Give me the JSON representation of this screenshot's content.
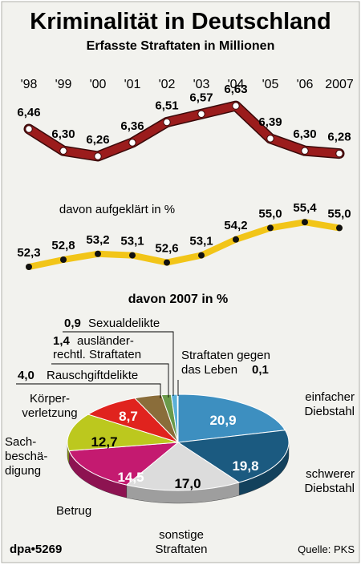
{
  "header": {
    "title": "Kriminalität in Deutschland",
    "subtitle": "Erfasste Straftaten in Millionen"
  },
  "footer": {
    "agency": "dpa•5269",
    "source": "Quelle: PKS"
  },
  "colors": {
    "background": "#f2f2ee",
    "offense_line": "#9b1c1c",
    "clearance_line": "#f2c518"
  },
  "chart_data": [
    {
      "type": "line",
      "title": "Kriminalität in Deutschland",
      "subtitle": "Erfasste Straftaten in Millionen",
      "categories": [
        "'98",
        "'99",
        "'00",
        "'01",
        "'02",
        "'03",
        "'04",
        "'05",
        "'06",
        "2007"
      ],
      "series": [
        {
          "values": [
            6.46,
            6.3,
            6.26,
            6.36,
            6.51,
            6.57,
            6.63,
            6.39,
            6.3,
            6.28
          ],
          "labels": [
            "6,46",
            "6,30",
            "6,26",
            "6,36",
            "6,51",
            "6,57",
            "6,63",
            "6,39",
            "6,30",
            "6,28"
          ],
          "color": "#9b1c1c"
        },
        {
          "name": "davon aufgeklärt in %",
          "values": [
            52.3,
            52.8,
            53.2,
            53.1,
            52.6,
            53.1,
            54.2,
            55.0,
            55.4,
            55.0
          ],
          "labels": [
            "52,3",
            "52,8",
            "53,2",
            "53,1",
            "52,6",
            "53,1",
            "54,2",
            "55,0",
            "55,4",
            "55,0"
          ],
          "color": "#f2c518"
        }
      ],
      "grid": false,
      "legend": "none"
    },
    {
      "type": "pie",
      "title": "davon 2007 in %",
      "slices": [
        {
          "name": "einfacher Diebstahl",
          "value": 20.9,
          "label": "20,9",
          "color": "#3d8fc0"
        },
        {
          "name": "schwerer Diebstahl",
          "value": 19.8,
          "label": "19,8",
          "color": "#1b5a80"
        },
        {
          "name": "sonstige Straftaten",
          "value": 17.0,
          "label": "17,0",
          "color": "#dcdcdc"
        },
        {
          "name": "Betrug",
          "value": 14.5,
          "label": "14,5",
          "color": "#c41a70"
        },
        {
          "name": "Sachbeschädigung",
          "value": 12.7,
          "label": "12,7",
          "color": "#bcc81e"
        },
        {
          "name": "Körperverletzung",
          "value": 8.7,
          "label": "8,7",
          "color": "#e0231e"
        },
        {
          "name": "Rauschgiftdelikte",
          "value": 4.0,
          "label": "4,0",
          "color": "#8a6d3a"
        },
        {
          "name": "ausländerrechtl. Straftaten",
          "value": 1.4,
          "label": "1,4",
          "color": "#6a9a4a"
        },
        {
          "name": "Sexualdelikte",
          "value": 0.9,
          "label": "0,9",
          "color": "#5ab0d8"
        },
        {
          "name": "Straftaten gegen das Leben",
          "value": 0.1,
          "label": "0,1",
          "color": "#e8c21a"
        }
      ],
      "slice_labels": {
        "einfacher_diebstahl": [
          "einfacher",
          "Diebstahl"
        ],
        "schwerer_diebstahl": [
          "schwerer",
          "Diebstahl"
        ],
        "sonstige": [
          "sonstige",
          "Straftaten"
        ],
        "betrug": "Betrug",
        "sachbeschaedigung": [
          "Sach-",
          "beschä-",
          "digung"
        ],
        "koerperverletzung": [
          "Körper-",
          "verletzung"
        ],
        "rauschgift": "Rauschgiftdelikte",
        "auslaender": [
          "ausländer-",
          "rechtl. Straftaten"
        ],
        "sexual": "Sexualdelikte",
        "leben": [
          "Straftaten gegen",
          "das Leben"
        ]
      }
    }
  ]
}
